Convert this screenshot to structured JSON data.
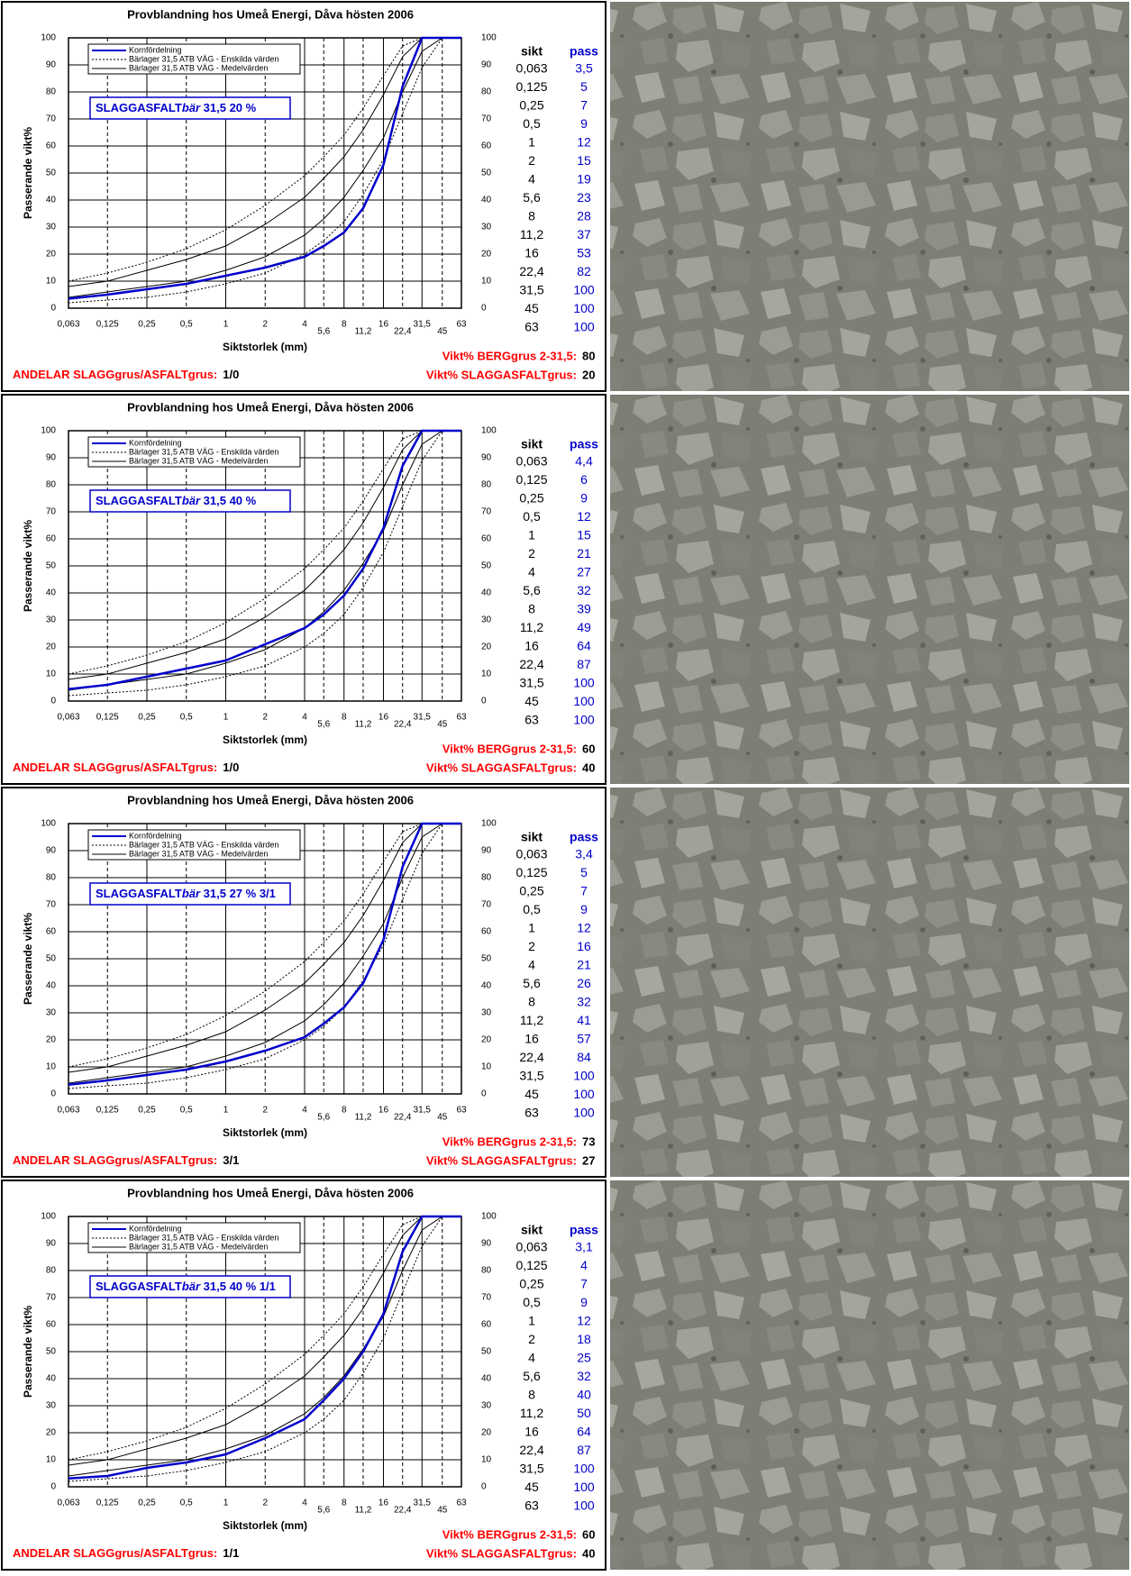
{
  "chart_data": [
    {
      "type": "line",
      "title": "Provblandning hos Umeå Energi, Dåva hösten 2006",
      "xlabel": "Siktstorlek (mm)",
      "ylabel": "Passerande vikt%",
      "xscale": "log",
      "xlim": [
        0.063,
        63
      ],
      "ylim": [
        0,
        100
      ],
      "grid": true,
      "xticks": [
        {
          "value": 0.063,
          "label": "0,063"
        },
        {
          "value": 0.125,
          "label": "0,125"
        },
        {
          "value": 0.25,
          "label": "0,25"
        },
        {
          "value": 0.5,
          "label": "0,5"
        },
        1,
        2,
        4,
        {
          "value": 5.6,
          "label": "5,6"
        },
        8,
        {
          "value": 11.2,
          "label": "11,2"
        },
        16,
        {
          "value": 22.4,
          "label": "22,4"
        },
        {
          "value": 31.5,
          "label": "31,5"
        },
        45,
        63
      ],
      "yticks": [
        0,
        10,
        20,
        30,
        40,
        50,
        60,
        70,
        80,
        90,
        100
      ],
      "x": [
        0.063,
        0.125,
        0.25,
        0.5,
        1,
        2,
        4,
        5.6,
        8,
        11.2,
        16,
        22.4,
        31.5,
        45,
        63
      ],
      "series": [
        {
          "name": "Kornfördelning",
          "color": "#0000cc",
          "dash": "solid",
          "width": 2.5,
          "values": [
            3.5,
            5,
            7,
            9,
            12,
            15,
            19,
            23,
            28,
            37,
            53,
            82,
            100,
            100,
            100
          ],
          "value_labels": [
            "3,5",
            "5",
            "7",
            "9",
            "12",
            "15",
            "19",
            "23",
            "28",
            "37",
            "53",
            "82",
            "100",
            "100",
            "100"
          ]
        },
        {
          "name": "Bärlager 31,5  ATB VÄG - Enskilda värden",
          "color": "#000000",
          "dash": "dotted",
          "width": 1,
          "values": [
            10,
            13,
            17,
            22,
            29,
            38,
            49,
            56,
            64,
            74,
            86,
            97,
            100,
            100,
            100
          ],
          "values_lower": [
            2,
            3,
            4,
            6,
            9,
            13,
            20,
            25,
            32,
            42,
            55,
            72,
            89,
            100,
            100
          ]
        },
        {
          "name": "Bärlager 31,5  ATB VÄG - Medelvärden",
          "color": "#000000",
          "dash": "solid",
          "width": 1,
          "values": [
            8,
            10,
            14,
            18,
            23,
            31,
            41,
            48,
            56,
            66,
            79,
            93,
            100,
            100,
            100
          ],
          "values_lower": [
            4,
            6,
            8,
            10,
            14,
            19,
            27,
            33,
            41,
            51,
            63,
            80,
            95,
            100,
            100
          ]
        }
      ],
      "annotation": [
        "SLAGGASFALT",
        "bär",
        " 31,5 20 %"
      ],
      "table_headers": [
        "sikt",
        "pass"
      ],
      "summary": [
        {
          "label": "Vikt% BERGgrus 2-31,5:",
          "value": 80
        },
        {
          "label": "Vikt% SLAGGASFALTgrus:",
          "value": 20
        }
      ],
      "ratio": {
        "label": "ANDELAR SLAGGgrus/ASFALTgrus:",
        "value": "1/0"
      }
    },
    {
      "type": "line",
      "title": "Provblandning hos Umeå Energi, Dåva hösten 2006",
      "xlabel": "Siktstorlek (mm)",
      "ylabel": "Passerande vikt%",
      "xscale": "log",
      "xlim": [
        0.063,
        63
      ],
      "ylim": [
        0,
        100
      ],
      "grid": true,
      "xticks": [
        {
          "value": 0.063,
          "label": "0,063"
        },
        {
          "value": 0.125,
          "label": "0,125"
        },
        {
          "value": 0.25,
          "label": "0,25"
        },
        {
          "value": 0.5,
          "label": "0,5"
        },
        1,
        2,
        4,
        {
          "value": 5.6,
          "label": "5,6"
        },
        8,
        {
          "value": 11.2,
          "label": "11,2"
        },
        16,
        {
          "value": 22.4,
          "label": "22,4"
        },
        {
          "value": 31.5,
          "label": "31,5"
        },
        45,
        63
      ],
      "yticks": [
        0,
        10,
        20,
        30,
        40,
        50,
        60,
        70,
        80,
        90,
        100
      ],
      "x": [
        0.063,
        0.125,
        0.25,
        0.5,
        1,
        2,
        4,
        5.6,
        8,
        11.2,
        16,
        22.4,
        31.5,
        45,
        63
      ],
      "series": [
        {
          "name": "Kornfördelning",
          "color": "#0000cc",
          "dash": "solid",
          "width": 2.5,
          "values": [
            4.4,
            6,
            9,
            12,
            15,
            21,
            27,
            32,
            39,
            49,
            64,
            87,
            100,
            100,
            100
          ],
          "value_labels": [
            "4,4",
            "6",
            "9",
            "12",
            "15",
            "21",
            "27",
            "32",
            "39",
            "49",
            "64",
            "87",
            "100",
            "100",
            "100"
          ]
        },
        {
          "name": "Bärlager 31,5  ATB VÄG - Enskilda värden",
          "color": "#000000",
          "dash": "dotted",
          "width": 1,
          "values": [
            10,
            13,
            17,
            22,
            29,
            38,
            49,
            56,
            64,
            74,
            86,
            97,
            100,
            100,
            100
          ],
          "values_lower": [
            2,
            3,
            4,
            6,
            9,
            13,
            20,
            25,
            32,
            42,
            55,
            72,
            89,
            100,
            100
          ]
        },
        {
          "name": "Bärlager 31,5  ATB VÄG - Medelvärden",
          "color": "#000000",
          "dash": "solid",
          "width": 1,
          "values": [
            8,
            10,
            14,
            18,
            23,
            31,
            41,
            48,
            56,
            66,
            79,
            93,
            100,
            100,
            100
          ],
          "values_lower": [
            4,
            6,
            8,
            10,
            14,
            19,
            27,
            33,
            41,
            51,
            63,
            80,
            95,
            100,
            100
          ]
        }
      ],
      "annotation": [
        "SLAGGASFALT",
        "bär",
        " 31,5 40 %"
      ],
      "table_headers": [
        "sikt",
        "pass"
      ],
      "summary": [
        {
          "label": "Vikt% BERGgrus 2-31,5:",
          "value": 60
        },
        {
          "label": "Vikt% SLAGGASFALTgrus:",
          "value": 40
        }
      ],
      "ratio": {
        "label": "ANDELAR SLAGGgrus/ASFALTgrus:",
        "value": "1/0"
      }
    },
    {
      "type": "line",
      "title": "Provblandning hos Umeå Energi, Dåva hösten 2006",
      "xlabel": "Siktstorlek (mm)",
      "ylabel": "Passerande vikt%",
      "xscale": "log",
      "xlim": [
        0.063,
        63
      ],
      "ylim": [
        0,
        100
      ],
      "grid": true,
      "xticks": [
        {
          "value": 0.063,
          "label": "0,063"
        },
        {
          "value": 0.125,
          "label": "0,125"
        },
        {
          "value": 0.25,
          "label": "0,25"
        },
        {
          "value": 0.5,
          "label": "0,5"
        },
        1,
        2,
        4,
        {
          "value": 5.6,
          "label": "5,6"
        },
        8,
        {
          "value": 11.2,
          "label": "11,2"
        },
        16,
        {
          "value": 22.4,
          "label": "22,4"
        },
        {
          "value": 31.5,
          "label": "31,5"
        },
        45,
        63
      ],
      "yticks": [
        0,
        10,
        20,
        30,
        40,
        50,
        60,
        70,
        80,
        90,
        100
      ],
      "x": [
        0.063,
        0.125,
        0.25,
        0.5,
        1,
        2,
        4,
        5.6,
        8,
        11.2,
        16,
        22.4,
        31.5,
        45,
        63
      ],
      "series": [
        {
          "name": "Kornfördelning",
          "color": "#0000cc",
          "dash": "solid",
          "width": 2.5,
          "values": [
            3.4,
            5,
            7,
            9,
            12,
            16,
            21,
            26,
            32,
            41,
            57,
            84,
            100,
            100,
            100
          ],
          "value_labels": [
            "3,4",
            "5",
            "7",
            "9",
            "12",
            "16",
            "21",
            "26",
            "32",
            "41",
            "57",
            "84",
            "100",
            "100",
            "100"
          ]
        },
        {
          "name": "Bärlager 31,5  ATB VÄG - Enskilda värden",
          "color": "#000000",
          "dash": "dotted",
          "width": 1,
          "values": [
            10,
            13,
            17,
            22,
            29,
            38,
            49,
            56,
            64,
            74,
            86,
            97,
            100,
            100,
            100
          ],
          "values_lower": [
            2,
            3,
            4,
            6,
            9,
            13,
            20,
            25,
            32,
            42,
            55,
            72,
            89,
            100,
            100
          ]
        },
        {
          "name": "Bärlager 31,5  ATB VÄG - Medelvärden",
          "color": "#000000",
          "dash": "solid",
          "width": 1,
          "values": [
            8,
            10,
            14,
            18,
            23,
            31,
            41,
            48,
            56,
            66,
            79,
            93,
            100,
            100,
            100
          ],
          "values_lower": [
            4,
            6,
            8,
            10,
            14,
            19,
            27,
            33,
            41,
            51,
            63,
            80,
            95,
            100,
            100
          ]
        }
      ],
      "annotation": [
        "SLAGGASFALT",
        "bär",
        " 31,5 27 % 3/1"
      ],
      "table_headers": [
        "sikt",
        "pass"
      ],
      "summary": [
        {
          "label": "Vikt% BERGgrus 2-31,5:",
          "value": 73
        },
        {
          "label": "Vikt% SLAGGASFALTgrus:",
          "value": 27
        }
      ],
      "ratio": {
        "label": "ANDELAR SLAGGgrus/ASFALTgrus:",
        "value": "3/1"
      }
    },
    {
      "type": "line",
      "title": "Provblandning hos Umeå Energi, Dåva hösten 2006",
      "xlabel": "Siktstorlek (mm)",
      "ylabel": "Passerande vikt%",
      "xscale": "log",
      "xlim": [
        0.063,
        63
      ],
      "ylim": [
        0,
        100
      ],
      "grid": true,
      "xticks": [
        {
          "value": 0.063,
          "label": "0,063"
        },
        {
          "value": 0.125,
          "label": "0,125"
        },
        {
          "value": 0.25,
          "label": "0,25"
        },
        {
          "value": 0.5,
          "label": "0,5"
        },
        1,
        2,
        4,
        {
          "value": 5.6,
          "label": "5,6"
        },
        8,
        {
          "value": 11.2,
          "label": "11,2"
        },
        16,
        {
          "value": 22.4,
          "label": "22,4"
        },
        {
          "value": 31.5,
          "label": "31,5"
        },
        45,
        63
      ],
      "yticks": [
        0,
        10,
        20,
        30,
        40,
        50,
        60,
        70,
        80,
        90,
        100
      ],
      "x": [
        0.063,
        0.125,
        0.25,
        0.5,
        1,
        2,
        4,
        5.6,
        8,
        11.2,
        16,
        22.4,
        31.5,
        45,
        63
      ],
      "series": [
        {
          "name": "Kornfördelning",
          "color": "#0000cc",
          "dash": "solid",
          "width": 2.5,
          "values": [
            3.1,
            4,
            7,
            9,
            12,
            18,
            25,
            32,
            40,
            50,
            64,
            87,
            100,
            100,
            100
          ],
          "value_labels": [
            "3,1",
            "4",
            "7",
            "9",
            "12",
            "18",
            "25",
            "32",
            "40",
            "50",
            "64",
            "87",
            "100",
            "100",
            "100"
          ]
        },
        {
          "name": "Bärlager 31,5  ATB VÄG - Enskilda värden",
          "color": "#000000",
          "dash": "dotted",
          "width": 1,
          "values": [
            10,
            13,
            17,
            22,
            29,
            38,
            49,
            56,
            64,
            74,
            86,
            97,
            100,
            100,
            100
          ],
          "values_lower": [
            2,
            3,
            4,
            6,
            9,
            13,
            20,
            25,
            32,
            42,
            55,
            72,
            89,
            100,
            100
          ]
        },
        {
          "name": "Bärlager 31,5  ATB VÄG - Medelvärden",
          "color": "#000000",
          "dash": "solid",
          "width": 1,
          "values": [
            8,
            10,
            14,
            18,
            23,
            31,
            41,
            48,
            56,
            66,
            79,
            93,
            100,
            100,
            100
          ],
          "values_lower": [
            4,
            6,
            8,
            10,
            14,
            19,
            27,
            33,
            41,
            51,
            63,
            80,
            95,
            100,
            100
          ]
        }
      ],
      "annotation": [
        "SLAGGASFALT",
        "bär",
        " 31,5 40 % 1/1"
      ],
      "table_headers": [
        "sikt",
        "pass"
      ],
      "summary": [
        {
          "label": "Vikt% BERGgrus 2-31,5:",
          "value": 60
        },
        {
          "label": "Vikt% SLAGGASFALTgrus:",
          "value": 40
        }
      ],
      "ratio": {
        "label": "ANDELAR SLAGGgrus/ASFALTgrus:",
        "value": "1/1"
      }
    }
  ]
}
